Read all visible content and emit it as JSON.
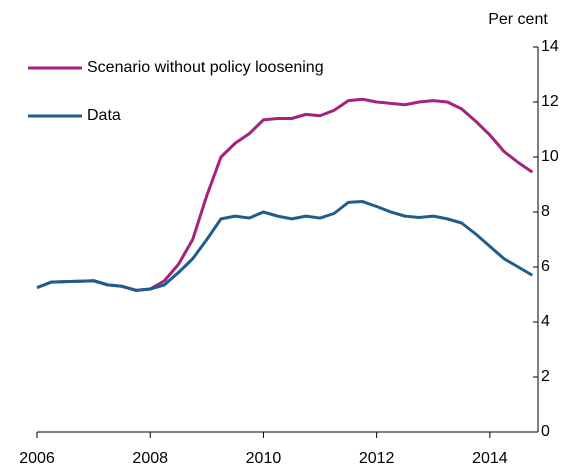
{
  "chart_data": {
    "type": "line",
    "y_axis_label": "Per cent",
    "x": [
      2006,
      2006.25,
      2006.5,
      2006.75,
      2007,
      2007.25,
      2007.5,
      2007.75,
      2008,
      2008.25,
      2008.5,
      2008.75,
      2009,
      2009.25,
      2009.5,
      2009.75,
      2010,
      2010.25,
      2010.5,
      2010.75,
      2011,
      2011.25,
      2011.5,
      2011.75,
      2012,
      2012.25,
      2012.5,
      2012.75,
      2013,
      2013.25,
      2013.5,
      2013.75,
      2014,
      2014.25,
      2014.5,
      2014.75
    ],
    "series": [
      {
        "name": "Scenario without policy loosening",
        "color": "#a3237f",
        "values": [
          5.25,
          5.45,
          5.47,
          5.48,
          5.5,
          5.35,
          5.3,
          5.15,
          5.2,
          5.5,
          6.1,
          7.0,
          8.6,
          10.0,
          10.5,
          10.85,
          11.35,
          11.4,
          11.4,
          11.55,
          11.5,
          11.7,
          12.05,
          12.1,
          12.0,
          11.95,
          11.9,
          12.0,
          12.05,
          12.0,
          11.75,
          11.3,
          10.8,
          10.2,
          9.8,
          9.45
        ]
      },
      {
        "name": "Data",
        "color": "#1f5d8c",
        "values": [
          5.25,
          5.45,
          5.47,
          5.48,
          5.5,
          5.35,
          5.3,
          5.15,
          5.2,
          5.35,
          5.8,
          6.3,
          7.0,
          7.75,
          7.85,
          7.78,
          8.0,
          7.85,
          7.75,
          7.85,
          7.78,
          7.95,
          8.35,
          8.38,
          8.2,
          8.0,
          7.85,
          7.8,
          7.85,
          7.75,
          7.6,
          7.2,
          6.75,
          6.3,
          6.0,
          5.7
        ]
      }
    ],
    "xlim": [
      2006,
      2014.85
    ],
    "xticks": [
      2006,
      2008,
      2010,
      2012,
      2014
    ],
    "ylim": [
      0,
      14
    ],
    "yticks": [
      0,
      2,
      4,
      6,
      8,
      10,
      12,
      14
    ],
    "legend": "top-left"
  }
}
